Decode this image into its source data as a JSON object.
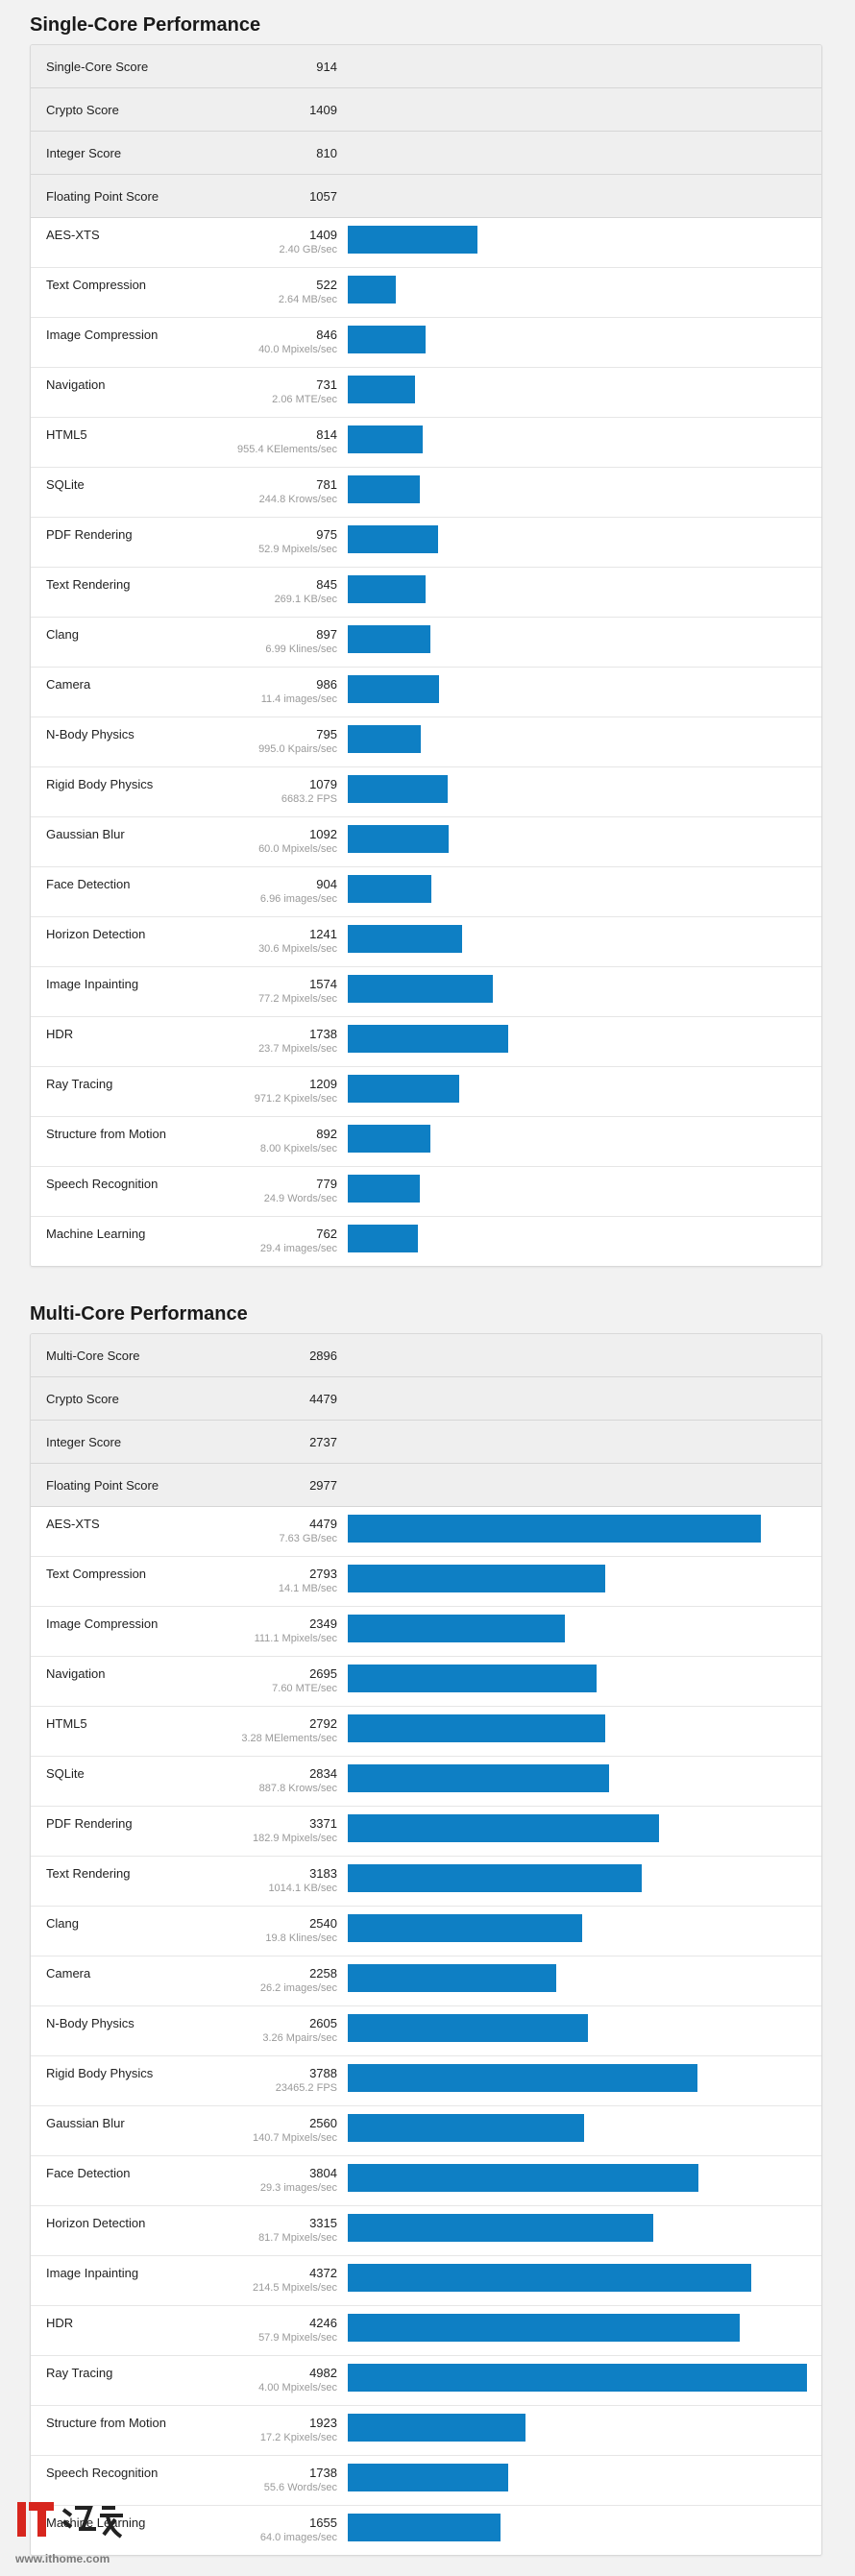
{
  "single": {
    "title": "Single-Core Performance",
    "summary": [
      {
        "name": "Single-Core Score",
        "value": "914"
      },
      {
        "name": "Crypto Score",
        "value": "1409"
      },
      {
        "name": "Integer Score",
        "value": "810"
      },
      {
        "name": "Floating Point Score",
        "value": "1057"
      }
    ],
    "benchmarks": [
      {
        "name": "AES-XTS",
        "score": 1409,
        "detail": "2.40 GB/sec"
      },
      {
        "name": "Text Compression",
        "score": 522,
        "detail": "2.64 MB/sec"
      },
      {
        "name": "Image Compression",
        "score": 846,
        "detail": "40.0 Mpixels/sec"
      },
      {
        "name": "Navigation",
        "score": 731,
        "detail": "2.06 MTE/sec"
      },
      {
        "name": "HTML5",
        "score": 814,
        "detail": "955.4 KElements/sec"
      },
      {
        "name": "SQLite",
        "score": 781,
        "detail": "244.8 Krows/sec"
      },
      {
        "name": "PDF Rendering",
        "score": 975,
        "detail": "52.9 Mpixels/sec"
      },
      {
        "name": "Text Rendering",
        "score": 845,
        "detail": "269.1 KB/sec"
      },
      {
        "name": "Clang",
        "score": 897,
        "detail": "6.99 Klines/sec"
      },
      {
        "name": "Camera",
        "score": 986,
        "detail": "11.4 images/sec"
      },
      {
        "name": "N-Body Physics",
        "score": 795,
        "detail": "995.0 Kpairs/sec"
      },
      {
        "name": "Rigid Body Physics",
        "score": 1079,
        "detail": "6683.2 FPS"
      },
      {
        "name": "Gaussian Blur",
        "score": 1092,
        "detail": "60.0 Mpixels/sec"
      },
      {
        "name": "Face Detection",
        "score": 904,
        "detail": "6.96 images/sec"
      },
      {
        "name": "Horizon Detection",
        "score": 1241,
        "detail": "30.6 Mpixels/sec"
      },
      {
        "name": "Image Inpainting",
        "score": 1574,
        "detail": "77.2 Mpixels/sec"
      },
      {
        "name": "HDR",
        "score": 1738,
        "detail": "23.7 Mpixels/sec"
      },
      {
        "name": "Ray Tracing",
        "score": 1209,
        "detail": "971.2 Kpixels/sec"
      },
      {
        "name": "Structure from Motion",
        "score": 892,
        "detail": "8.00 Kpixels/sec"
      },
      {
        "name": "Speech Recognition",
        "score": 779,
        "detail": "24.9 Words/sec"
      },
      {
        "name": "Machine Learning",
        "score": 762,
        "detail": "29.4 images/sec"
      }
    ]
  },
  "multi": {
    "title": "Multi-Core Performance",
    "summary": [
      {
        "name": "Multi-Core Score",
        "value": "2896"
      },
      {
        "name": "Crypto Score",
        "value": "4479"
      },
      {
        "name": "Integer Score",
        "value": "2737"
      },
      {
        "name": "Floating Point Score",
        "value": "2977"
      }
    ],
    "benchmarks": [
      {
        "name": "AES-XTS",
        "score": 4479,
        "detail": "7.63 GB/sec"
      },
      {
        "name": "Text Compression",
        "score": 2793,
        "detail": "14.1 MB/sec"
      },
      {
        "name": "Image Compression",
        "score": 2349,
        "detail": "111.1 Mpixels/sec"
      },
      {
        "name": "Navigation",
        "score": 2695,
        "detail": "7.60 MTE/sec"
      },
      {
        "name": "HTML5",
        "score": 2792,
        "detail": "3.28 MElements/sec"
      },
      {
        "name": "SQLite",
        "score": 2834,
        "detail": "887.8 Krows/sec"
      },
      {
        "name": "PDF Rendering",
        "score": 3371,
        "detail": "182.9 Mpixels/sec"
      },
      {
        "name": "Text Rendering",
        "score": 3183,
        "detail": "1014.1 KB/sec"
      },
      {
        "name": "Clang",
        "score": 2540,
        "detail": "19.8 Klines/sec"
      },
      {
        "name": "Camera",
        "score": 2258,
        "detail": "26.2 images/sec"
      },
      {
        "name": "N-Body Physics",
        "score": 2605,
        "detail": "3.26 Mpairs/sec"
      },
      {
        "name": "Rigid Body Physics",
        "score": 3788,
        "detail": "23465.2 FPS"
      },
      {
        "name": "Gaussian Blur",
        "score": 2560,
        "detail": "140.7 Mpixels/sec"
      },
      {
        "name": "Face Detection",
        "score": 3804,
        "detail": "29.3 images/sec"
      },
      {
        "name": "Horizon Detection",
        "score": 3315,
        "detail": "81.7 Mpixels/sec"
      },
      {
        "name": "Image Inpainting",
        "score": 4372,
        "detail": "214.5 Mpixels/sec"
      },
      {
        "name": "HDR",
        "score": 4246,
        "detail": "57.9 Mpixels/sec"
      },
      {
        "name": "Ray Tracing",
        "score": 4982,
        "detail": "4.00 Mpixels/sec"
      },
      {
        "name": "Structure from Motion",
        "score": 1923,
        "detail": "17.2 Kpixels/sec"
      },
      {
        "name": "Speech Recognition",
        "score": 1738,
        "detail": "55.6 Words/sec"
      },
      {
        "name": "Machine Learning",
        "score": 1655,
        "detail": "64.0 images/sec"
      }
    ]
  },
  "colors": {
    "bar": "#0e7fc4",
    "summary_bg": "#efefef",
    "page_bg": "#f2f2f2"
  },
  "watermark": {
    "logo_text": "IT之家",
    "url": "www.ithome.com"
  }
}
